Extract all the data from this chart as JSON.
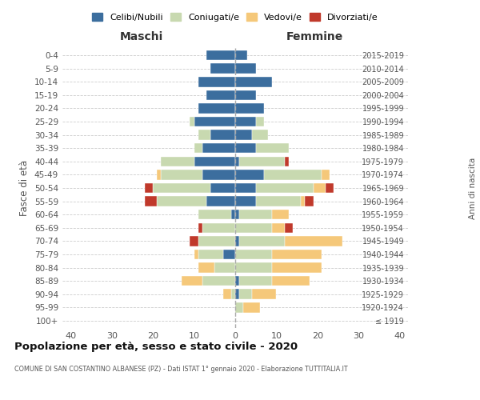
{
  "age_groups": [
    "100+",
    "95-99",
    "90-94",
    "85-89",
    "80-84",
    "75-79",
    "70-74",
    "65-69",
    "60-64",
    "55-59",
    "50-54",
    "45-49",
    "40-44",
    "35-39",
    "30-34",
    "25-29",
    "20-24",
    "15-19",
    "10-14",
    "5-9",
    "0-4"
  ],
  "birth_years": [
    "≤ 1919",
    "1920-1924",
    "1925-1929",
    "1930-1934",
    "1935-1939",
    "1940-1944",
    "1945-1949",
    "1950-1954",
    "1955-1959",
    "1960-1964",
    "1965-1969",
    "1970-1974",
    "1975-1979",
    "1980-1984",
    "1985-1989",
    "1990-1994",
    "1995-1999",
    "2000-2004",
    "2005-2009",
    "2010-2014",
    "2015-2019"
  ],
  "maschi": {
    "celibi": [
      0,
      0,
      0,
      0,
      0,
      3,
      0,
      0,
      1,
      7,
      6,
      8,
      10,
      8,
      6,
      10,
      9,
      7,
      9,
      6,
      7
    ],
    "coniugati": [
      0,
      0,
      1,
      8,
      5,
      6,
      9,
      8,
      8,
      12,
      14,
      10,
      8,
      2,
      3,
      1,
      0,
      0,
      0,
      0,
      0
    ],
    "vedovi": [
      0,
      0,
      2,
      5,
      4,
      1,
      0,
      0,
      0,
      0,
      0,
      1,
      0,
      0,
      0,
      0,
      0,
      0,
      0,
      0,
      0
    ],
    "divorziati": [
      0,
      0,
      0,
      0,
      0,
      0,
      2,
      1,
      0,
      3,
      2,
      0,
      0,
      0,
      0,
      0,
      0,
      0,
      0,
      0,
      0
    ]
  },
  "femmine": {
    "nubili": [
      0,
      0,
      1,
      1,
      0,
      0,
      1,
      0,
      1,
      5,
      5,
      7,
      1,
      5,
      4,
      5,
      7,
      5,
      9,
      5,
      3
    ],
    "coniugate": [
      0,
      2,
      3,
      8,
      9,
      9,
      11,
      9,
      8,
      11,
      14,
      14,
      11,
      8,
      4,
      2,
      0,
      0,
      0,
      0,
      0
    ],
    "vedove": [
      0,
      4,
      6,
      9,
      12,
      12,
      14,
      3,
      4,
      1,
      3,
      2,
      0,
      0,
      0,
      0,
      0,
      0,
      0,
      0,
      0
    ],
    "divorziate": [
      0,
      0,
      0,
      0,
      0,
      0,
      0,
      2,
      0,
      2,
      2,
      0,
      1,
      0,
      0,
      0,
      0,
      0,
      0,
      0,
      0
    ]
  },
  "colors": {
    "celibi": "#3c6e9e",
    "coniugati": "#c8d9b0",
    "vedovi": "#f5c87a",
    "divorziati": "#c0392b"
  },
  "legend_labels": [
    "Celibi/Nubili",
    "Coniugati/e",
    "Vedovi/e",
    "Divorziati/e"
  ],
  "xlim": 42,
  "title": "Popolazione per età, sesso e stato civile - 2020",
  "subtitle": "COMUNE DI SAN COSTANTINO ALBANESE (PZ) - Dati ISTAT 1° gennaio 2020 - Elaborazione TUTTITALIA.IT",
  "ylabel_left": "Fasce di età",
  "ylabel_right": "Anni di nascita",
  "xlabel_left": "Maschi",
  "xlabel_right": "Femmine",
  "bg_color": "#ffffff",
  "grid_color": "#cccccc",
  "bar_height": 0.75
}
